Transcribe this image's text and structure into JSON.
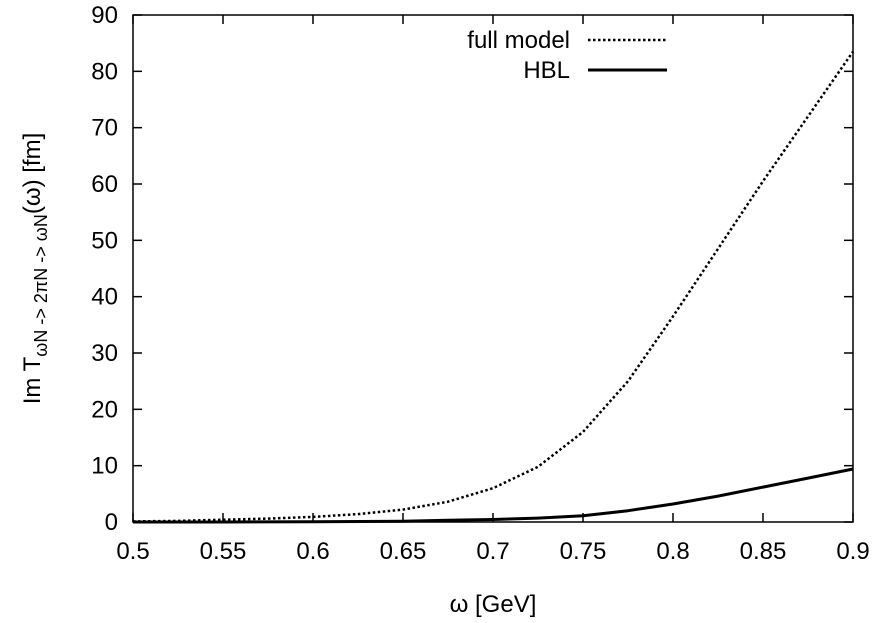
{
  "chart_data": {
    "type": "line",
    "xlabel": "ω [GeV]",
    "ylabel": {
      "main": "Im T",
      "subscript": "ωN -> 2πN -> ωN",
      "suffix": "(ω) [fm]"
    },
    "xlim": [
      0.5,
      0.9
    ],
    "ylim": [
      0,
      90
    ],
    "xticks": [
      0.5,
      0.55,
      0.6,
      0.65,
      0.7,
      0.75,
      0.8,
      0.85,
      0.9
    ],
    "yticks": [
      0,
      10,
      20,
      30,
      40,
      50,
      60,
      70,
      80,
      90
    ],
    "grid": false,
    "legend": "top-right",
    "series": [
      {
        "name": "full model",
        "style": "dotted",
        "color": "#000000",
        "x": [
          0.5,
          0.525,
          0.55,
          0.575,
          0.6,
          0.625,
          0.65,
          0.675,
          0.7,
          0.725,
          0.75,
          0.775,
          0.8,
          0.825,
          0.85,
          0.875,
          0.9
        ],
        "y": [
          0.1,
          0.2,
          0.4,
          0.6,
          0.9,
          1.4,
          2.2,
          3.6,
          6.0,
          9.8,
          16.0,
          25.0,
          36.5,
          48.5,
          60.5,
          72.0,
          83.5
        ]
      },
      {
        "name": "HBL",
        "style": "solid",
        "color": "#000000",
        "x": [
          0.5,
          0.55,
          0.6,
          0.65,
          0.675,
          0.7,
          0.725,
          0.75,
          0.775,
          0.8,
          0.825,
          0.85,
          0.875,
          0.9
        ],
        "y": [
          0.0,
          0.0,
          0.05,
          0.15,
          0.3,
          0.45,
          0.7,
          1.1,
          2.0,
          3.2,
          4.6,
          6.2,
          7.8,
          9.4
        ]
      }
    ]
  }
}
